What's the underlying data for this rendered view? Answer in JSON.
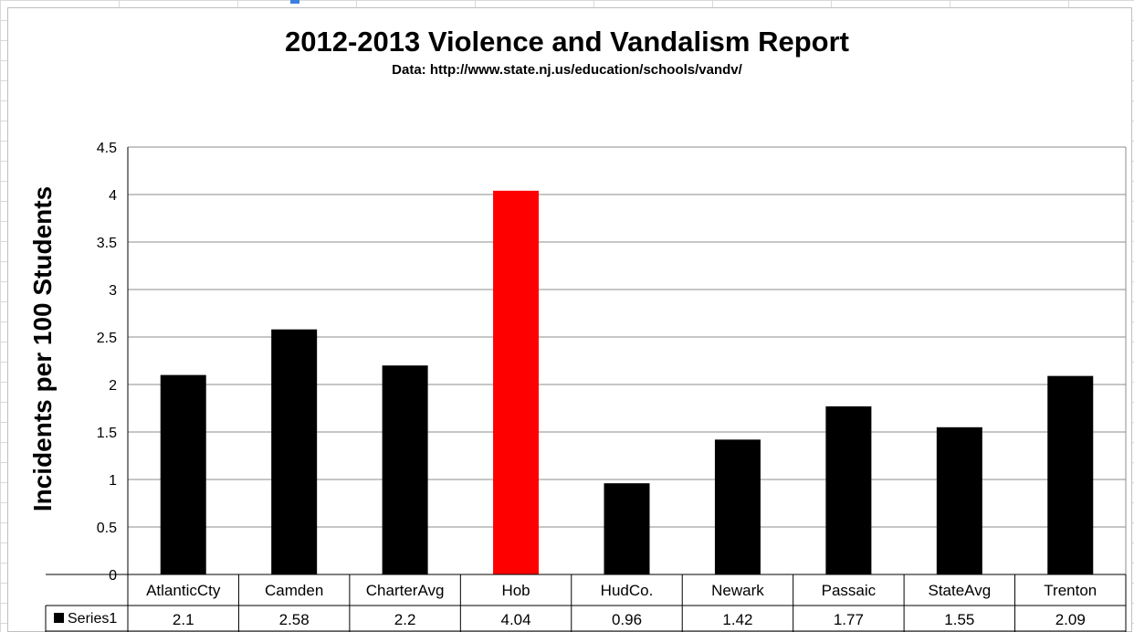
{
  "chart_data": {
    "type": "bar",
    "title": "2012-2013 Violence and Vandalism Report",
    "subtitle": "Data: http://www.state.nj.us/education/schools/vandv/",
    "xlabel": "",
    "ylabel": "Incidents per 100 Students",
    "categories": [
      "AtlanticCty",
      "Camden",
      "CharterAvg",
      "Hob",
      "HudCo.",
      "Newark",
      "Passaic",
      "StateAvg",
      "Trenton"
    ],
    "series": [
      {
        "name": "Series1",
        "values": [
          2.1,
          2.58,
          2.2,
          4.04,
          0.96,
          1.42,
          1.77,
          1.55,
          2.09
        ]
      }
    ],
    "ylim": [
      0,
      4.5
    ],
    "yticks": [
      0,
      0.5,
      1,
      1.5,
      2,
      2.5,
      3,
      3.5,
      4,
      4.5
    ],
    "grid": true,
    "data_table": true,
    "colors": {
      "bar_default": "#000000",
      "bar_highlight": "#ff0000",
      "highlight_category": "Hob",
      "grid": "#8c8c8c"
    }
  }
}
